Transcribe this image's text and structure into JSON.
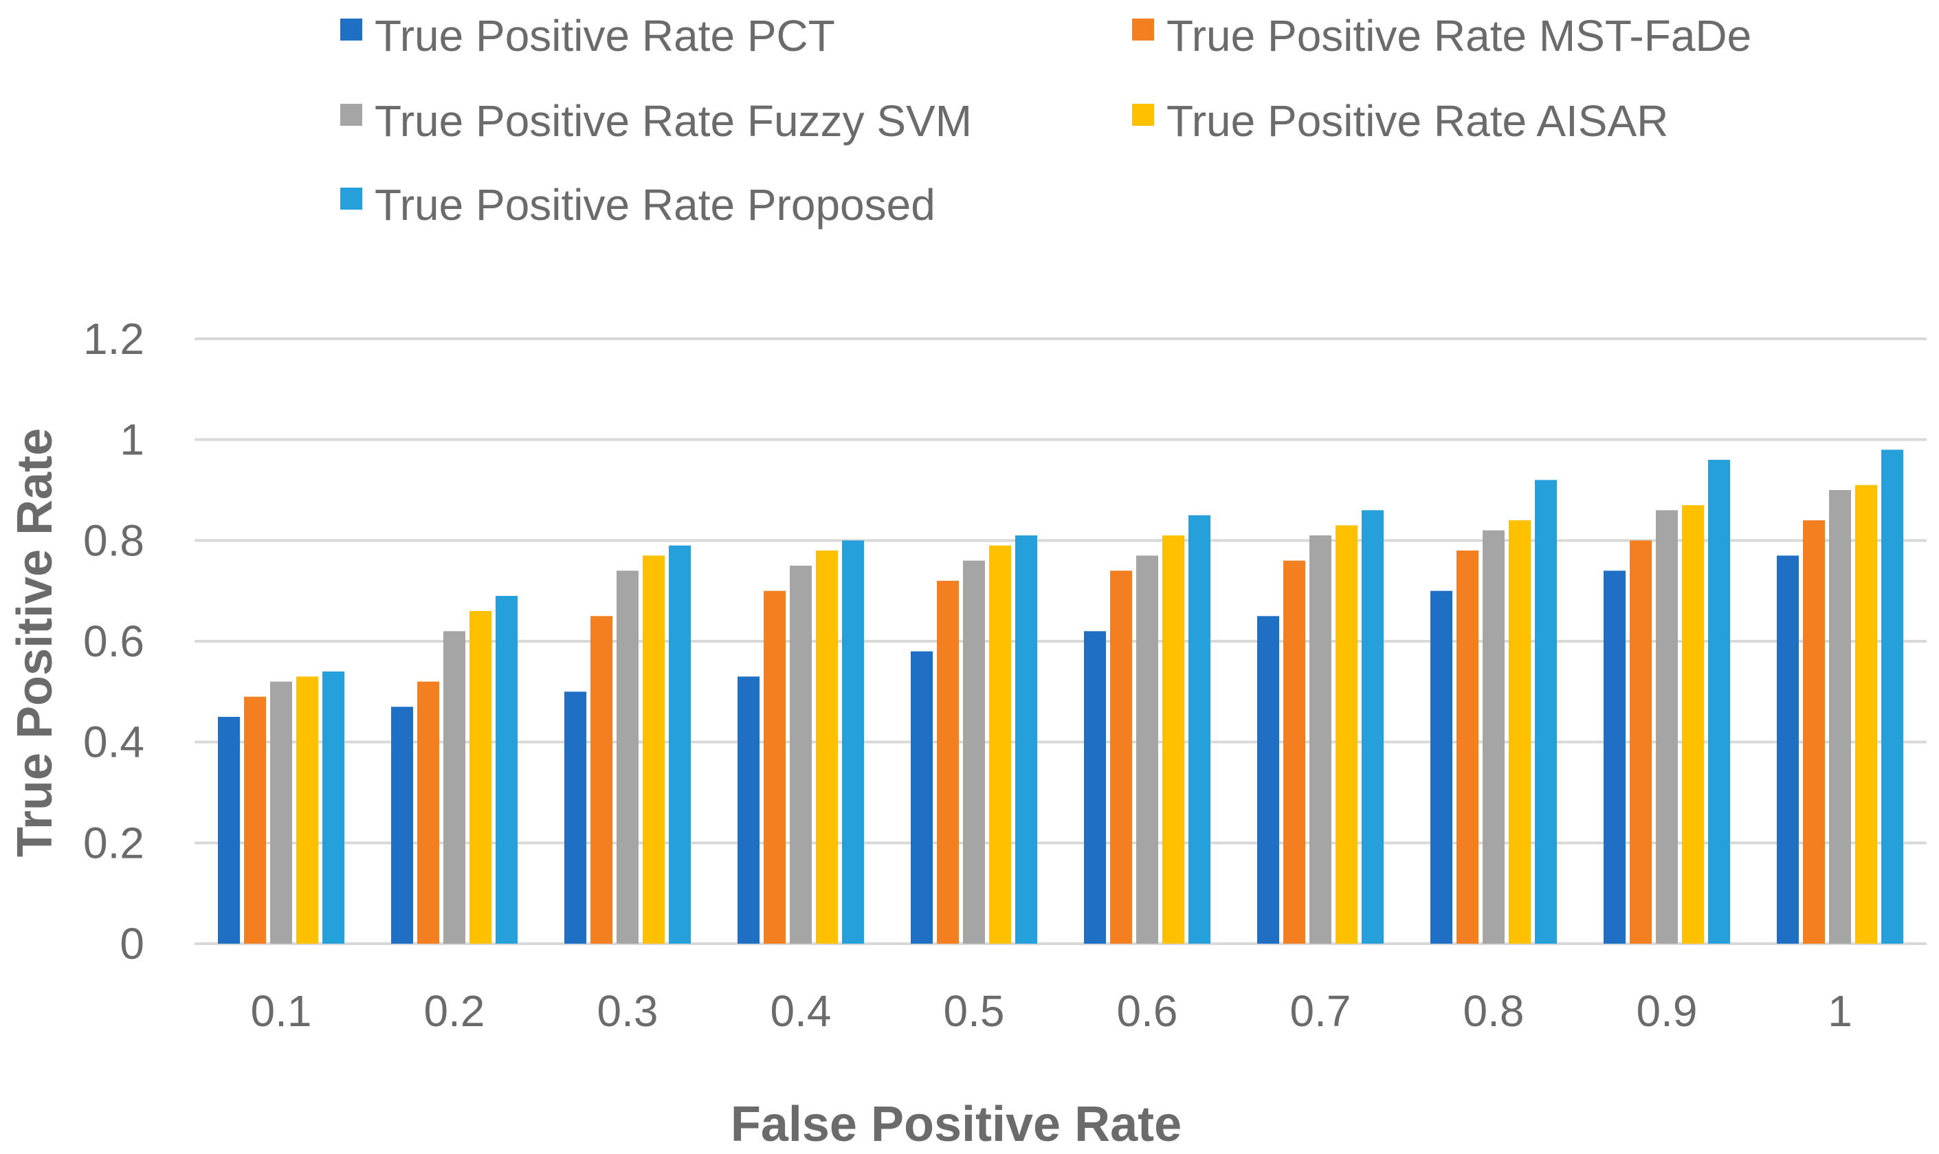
{
  "chart_data": {
    "type": "bar",
    "title": "",
    "xlabel": "False Positive Rate",
    "ylabel": "True Positive Rate",
    "categories": [
      "0.1",
      "0.2",
      "0.3",
      "0.4",
      "0.5",
      "0.6",
      "0.7",
      "0.8",
      "0.9",
      "1"
    ],
    "ylim": [
      0,
      1.2
    ],
    "yticks": [
      "0",
      "0.2",
      "0.4",
      "0.6",
      "0.8",
      "1",
      "1.2"
    ],
    "ytick_values": [
      0,
      0.2,
      0.4,
      0.6,
      0.8,
      1,
      1.2
    ],
    "grid": true,
    "legend_position": "top",
    "series": [
      {
        "name": "True Positive Rate PCT",
        "color": "#1f6fc5",
        "values": [
          0.45,
          0.47,
          0.5,
          0.53,
          0.58,
          0.62,
          0.65,
          0.7,
          0.74,
          0.77
        ]
      },
      {
        "name": "True Positive Rate MST-FaDe",
        "color": "#f47f20",
        "values": [
          0.49,
          0.52,
          0.65,
          0.7,
          0.72,
          0.74,
          0.76,
          0.78,
          0.8,
          0.84
        ]
      },
      {
        "name": "True Positive Rate Fuzzy SVM",
        "color": "#a5a5a5",
        "values": [
          0.52,
          0.62,
          0.74,
          0.75,
          0.76,
          0.77,
          0.81,
          0.82,
          0.86,
          0.9
        ]
      },
      {
        "name": "True Positive Rate AISAR",
        "color": "#ffc000",
        "values": [
          0.53,
          0.66,
          0.77,
          0.78,
          0.79,
          0.81,
          0.83,
          0.84,
          0.87,
          0.91
        ]
      },
      {
        "name": "True Positive Rate Proposed",
        "color": "#26a0da",
        "values": [
          0.54,
          0.69,
          0.79,
          0.8,
          0.81,
          0.85,
          0.86,
          0.92,
          0.96,
          0.98
        ]
      }
    ]
  }
}
